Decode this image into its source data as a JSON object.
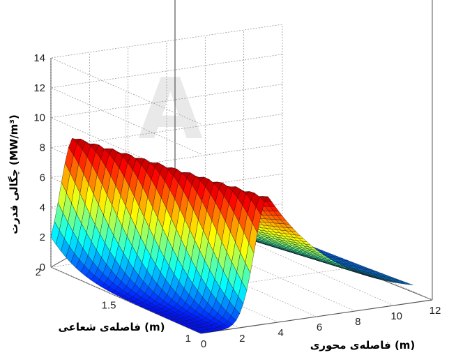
{
  "watermark": "A",
  "chart_data": {
    "type": "surface",
    "xlabel": "فاصله‌ی محوری (m)",
    "ylabel": "فاصله‌ی شعاعی (m)",
    "zlabel": "چگالی قدرت (MW/m³)",
    "xlim": [
      0,
      12
    ],
    "ylim": [
      1,
      2
    ],
    "zlim": [
      0,
      14
    ],
    "x_ticks": [
      "0",
      "2",
      "4",
      "6",
      "8",
      "10",
      "12"
    ],
    "y_ticks": [
      "1",
      "1.5",
      "2"
    ],
    "z_ticks": [
      "0",
      "2",
      "4",
      "6",
      "8",
      "10",
      "12",
      "14"
    ],
    "grid": true,
    "colormap": "jet",
    "peaks": [
      {
        "x_range": [
          0,
          2
        ],
        "y": 2,
        "z": 8.5
      },
      {
        "x": 3.5,
        "y": 1,
        "z": 8.5
      }
    ]
  }
}
